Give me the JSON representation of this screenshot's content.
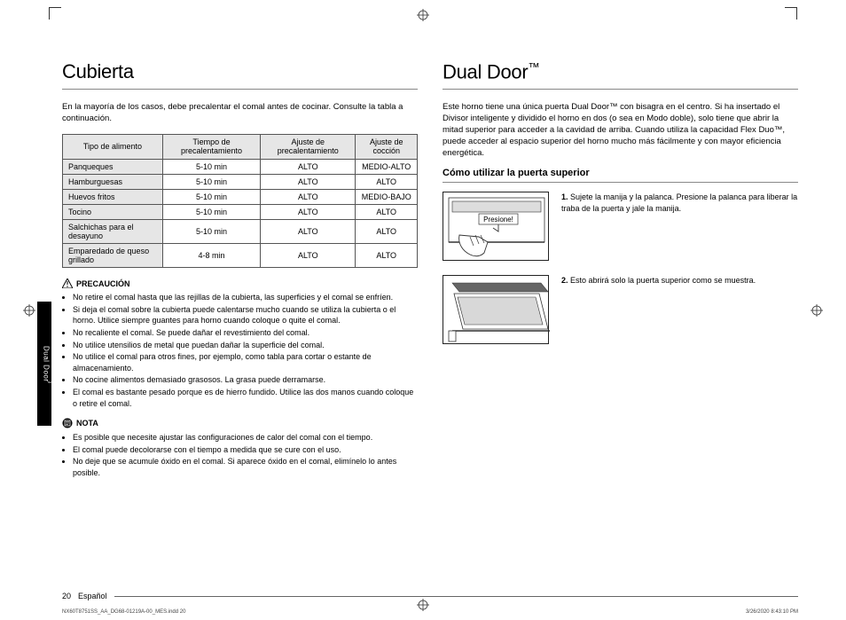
{
  "left": {
    "title": "Cubierta",
    "intro": "En la mayoría de los casos, debe precalentar el comal antes de cocinar. Consulte la tabla a continuación.",
    "table": {
      "headers": [
        "Tipo de alimento",
        "Tiempo de precalentamiento",
        "Ajuste de precalentamiento",
        "Ajuste de cocción"
      ],
      "rows": [
        [
          "Panqueques",
          "5-10 min",
          "ALTO",
          "MEDIO-ALTO"
        ],
        [
          "Hamburguesas",
          "5-10 min",
          "ALTO",
          "ALTO"
        ],
        [
          "Huevos fritos",
          "5-10 min",
          "ALTO",
          "MEDIO-BAJO"
        ],
        [
          "Tocino",
          "5-10 min",
          "ALTO",
          "ALTO"
        ],
        [
          "Salchichas para el desayuno",
          "5-10 min",
          "ALTO",
          "ALTO"
        ],
        [
          "Emparedado de queso grillado",
          "4-8 min",
          "ALTO",
          "ALTO"
        ]
      ]
    },
    "precaution_label": "PRECAUCIÓN",
    "precautions": [
      "No retire el comal hasta que las rejillas de la cubierta, las superficies y el comal se enfríen.",
      "Si deja el comal sobre la cubierta puede calentarse mucho cuando se utiliza la cubierta o el horno. Utilice siempre guantes para horno cuando coloque o quite el comal.",
      "No recaliente el comal. Se puede dañar el revestimiento del comal.",
      "No utilice utensilios de metal que puedan dañar la superficie del comal.",
      "No utilice el comal para otros fines, por ejemplo, como tabla para cortar o estante de almacenamiento.",
      "No cocine alimentos demasiado grasosos. La grasa puede derramarse.",
      "El comal es bastante pesado porque es de hierro fundido. Utilice las dos manos cuando coloque o retire el comal."
    ],
    "nota_label": "NOTA",
    "notas": [
      "Es posible que necesite ajustar las configuraciones de calor del comal con el tiempo.",
      "El comal puede decolorarse con el tiempo a medida que se cure con el uso.",
      "No deje que se acumule óxido en el comal. Si aparece óxido en el comal, elimínelo lo antes posible."
    ]
  },
  "right": {
    "title_a": "Dual Door",
    "title_tm": "™",
    "intro": "Este horno tiene una única puerta Dual Door™ con bisagra en el centro. Si ha insertado el Divisor inteligente y dividido el horno en dos (o sea en Modo doble), solo tiene que abrir la mitad superior para acceder a la cavidad de arriba. Cuando utiliza la capacidad Flex Duo™, puede acceder al espacio superior del horno mucho más fácilmente y con mayor eficiencia energética.",
    "subhead": "Cómo utilizar la puerta superior",
    "step1_label": "Presione!",
    "steps": [
      {
        "n": "1.",
        "text": "Sujete la manija y la palanca. Presione la palanca para liberar la traba de la puerta y jale la manija."
      },
      {
        "n": "2.",
        "text": "Esto abrirá solo la puerta superior como se muestra."
      }
    ]
  },
  "side_tab_a": "Dual Door",
  "side_tab_tm": "™",
  "footer": {
    "page": "20",
    "lang": "Español"
  },
  "meta": {
    "left": "NX60T8751SS_AA_DG68-01219A-00_MES.indd   20",
    "right": "3/26/2020   8:43:10 PM"
  }
}
